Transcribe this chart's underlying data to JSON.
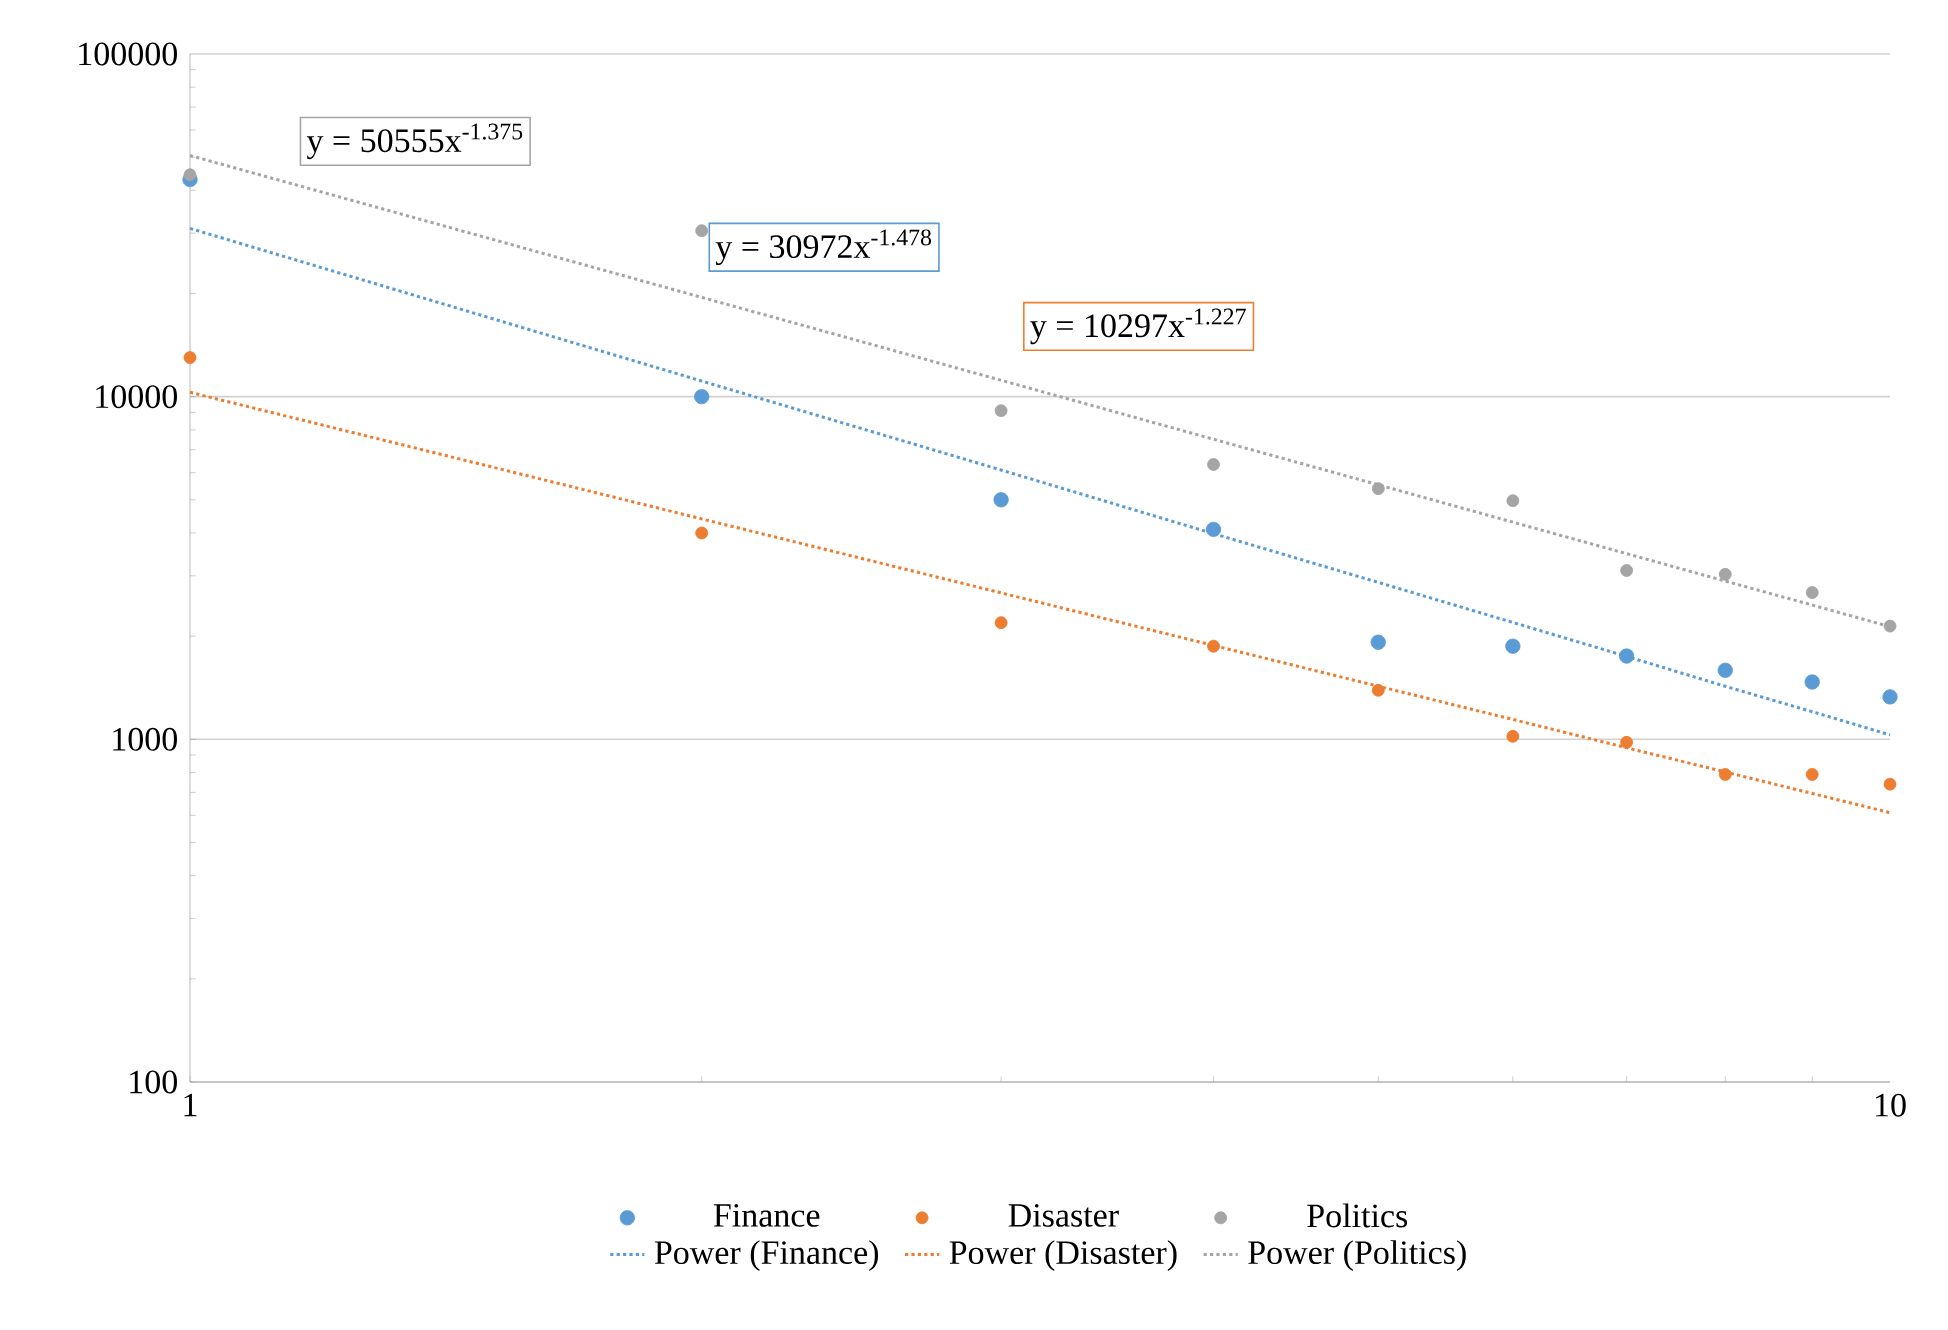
{
  "chart_data": {
    "type": "scatter",
    "log": "xy",
    "grid": "y",
    "legend": "bottom",
    "marker": "circle",
    "x": [
      1,
      2,
      3,
      4,
      5,
      6,
      7,
      8,
      9,
      10
    ],
    "xlim": [
      1,
      10
    ],
    "xticks": [
      1,
      10
    ],
    "ylim": [
      100,
      100000
    ],
    "yticks": [
      100,
      1000,
      10000,
      100000
    ],
    "series": [
      {
        "name": "Finance",
        "color": "#5b9bd5",
        "values": [
          43000,
          10000,
          5000,
          4100,
          1920,
          1870,
          1750,
          1590,
          1470,
          1330
        ]
      },
      {
        "name": "Disaster",
        "color": "#ed7d31",
        "values": [
          13000,
          4000,
          2190,
          1870,
          1390,
          1020,
          980,
          790,
          790,
          740
        ]
      },
      {
        "name": "Politics",
        "color": "#a5a5a5",
        "values": [
          44400,
          30500,
          9100,
          6340,
          5390,
          4970,
          3110,
          3030,
          2680,
          2140
        ]
      },
      {
        "name": "Power  (Finance)",
        "type": "line",
        "line_style": "dotted",
        "marker": "none",
        "color": "#5b9bd5",
        "values": [
          30972,
          11106,
          6108,
          3983,
          2871,
          2193,
          1746,
          1428,
          1204,
          1030
        ]
      },
      {
        "name": "Power  (Disaster)",
        "type": "line",
        "line_style": "dotted",
        "marker": "none",
        "color": "#ed7d31",
        "values": [
          10297,
          4399,
          2675,
          1879,
          1429,
          1143,
          945,
          803,
          695,
          611
        ]
      },
      {
        "name": "Power  (Politics)",
        "type": "line",
        "line_style": "dotted",
        "marker": "none",
        "color": "#a5a5a5",
        "values": [
          50555,
          19489,
          11163,
          7513,
          5531,
          4303,
          3483,
          2896,
          2465,
          2132
        ]
      }
    ],
    "annotations": [
      "y = 30972x$^{-1.478}$",
      "y = 10297x$^{-1.227}$",
      "y = 50555x$^{-1.375}$"
    ]
  }
}
